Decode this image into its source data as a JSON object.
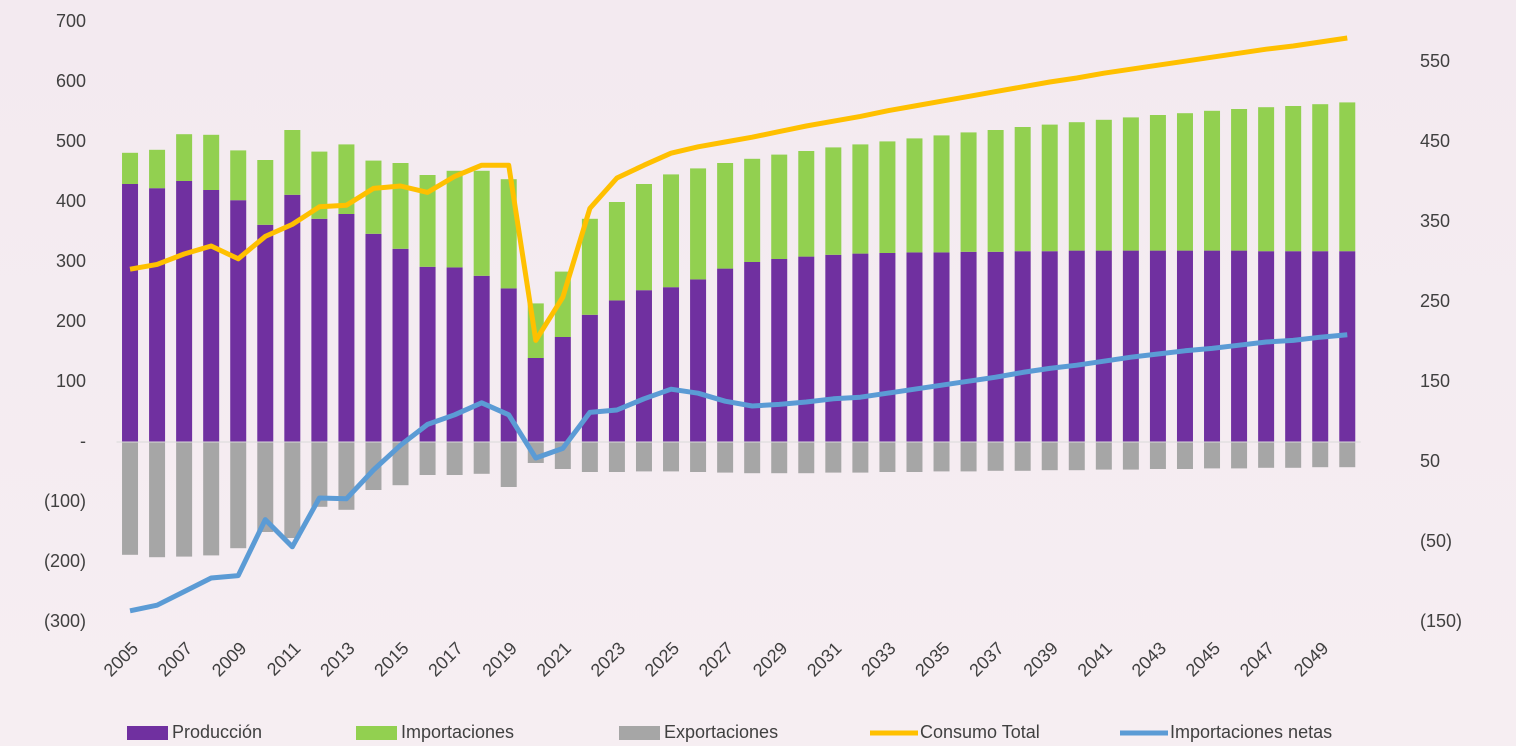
{
  "chart_data": {
    "type": "bar",
    "categories": [
      "2005",
      null,
      "2007",
      null,
      "2009",
      null,
      "2011",
      null,
      "2013",
      null,
      "2015",
      null,
      "2017",
      null,
      "2019",
      null,
      "2021",
      null,
      "2023",
      null,
      "2025",
      null,
      "2027",
      null,
      "2029",
      null,
      "2031",
      null,
      "2033",
      null,
      "2035",
      null,
      "2037",
      null,
      "2039",
      null,
      "2041",
      null,
      "2043",
      null,
      "2045",
      null,
      "2047",
      null,
      "2049",
      null
    ],
    "series": [
      {
        "name": "Producción",
        "type": "bar",
        "color": "#7030a0",
        "values": [
          430,
          423,
          435,
          420,
          403,
          362,
          412,
          372,
          380,
          347,
          322,
          292,
          291,
          277,
          256,
          140,
          175,
          212,
          236,
          253,
          258,
          271,
          289,
          300,
          305,
          309,
          312,
          314,
          315,
          316,
          316,
          317,
          317,
          318,
          318,
          319,
          319,
          319,
          319,
          319,
          319,
          319,
          318,
          318,
          318,
          318
        ]
      },
      {
        "name": "Importaciones",
        "type": "bar",
        "color": "#92d050",
        "values": [
          52,
          64,
          78,
          92,
          83,
          108,
          108,
          112,
          116,
          122,
          143,
          153,
          161,
          175,
          182,
          91,
          109,
          160,
          164,
          177,
          188,
          185,
          176,
          172,
          174,
          176,
          179,
          182,
          186,
          190,
          195,
          199,
          203,
          207,
          211,
          214,
          218,
          222,
          226,
          229,
          233,
          236,
          240,
          242,
          245,
          248
        ]
      },
      {
        "name": "Exportaciones",
        "type": "bar",
        "color": "#a6a6a6",
        "values": [
          -188,
          -192,
          -191,
          -189,
          -177,
          -150,
          -160,
          -108,
          -113,
          -80,
          -72,
          -55,
          -55,
          -53,
          -75,
          -35,
          -45,
          -50,
          -50,
          -49,
          -49,
          -50,
          -51,
          -52,
          -52,
          -52,
          -51,
          -51,
          -50,
          -50,
          -49,
          -49,
          -48,
          -48,
          -47,
          -47,
          -46,
          -46,
          -45,
          -45,
          -44,
          -44,
          -43,
          -43,
          -42,
          -42
        ]
      },
      {
        "name": "Consumo Total",
        "type": "line",
        "axis": "y2",
        "color": "#ffc000",
        "values": [
          291,
          297,
          310,
          320,
          304,
          332,
          347,
          369,
          371,
          392,
          395,
          387,
          407,
          421,
          421,
          202,
          256,
          367,
          405,
          421,
          436,
          444,
          450,
          456,
          463,
          470,
          476,
          482,
          489,
          495,
          501,
          507,
          513,
          519,
          525,
          530,
          536,
          541,
          546,
          551,
          556,
          561,
          566,
          570,
          575,
          580
        ]
      },
      {
        "name": "Importaciones netas",
        "type": "line",
        "axis": "y2",
        "color": "#5b9bd5",
        "values": [
          -136,
          -129,
          -112,
          -95,
          -92,
          -22,
          -56,
          5,
          4,
          40,
          71,
          97,
          109,
          124,
          109,
          55,
          67,
          112,
          115,
          129,
          141,
          136,
          126,
          120,
          122,
          125,
          129,
          131,
          136,
          141,
          146,
          151,
          156,
          162,
          167,
          171,
          176,
          181,
          185,
          189,
          192,
          196,
          200,
          202,
          206,
          209
        ]
      }
    ],
    "ylim": [
      -300,
      700
    ],
    "yticks": [
      {
        "value": -300,
        "label": "(300)"
      },
      {
        "value": -200,
        "label": "(200)"
      },
      {
        "value": -100,
        "label": "(100)"
      },
      {
        "value": 0,
        "label": "-"
      },
      100,
      200,
      300,
      400,
      500,
      600,
      700
    ],
    "y2lim": [
      -150,
      600
    ],
    "y2ticks": [
      {
        "value": -150,
        "label": "(150)"
      },
      {
        "value": -50,
        "label": "(50)"
      },
      50,
      150,
      250,
      350,
      450,
      550
    ],
    "legend": "bottom"
  }
}
